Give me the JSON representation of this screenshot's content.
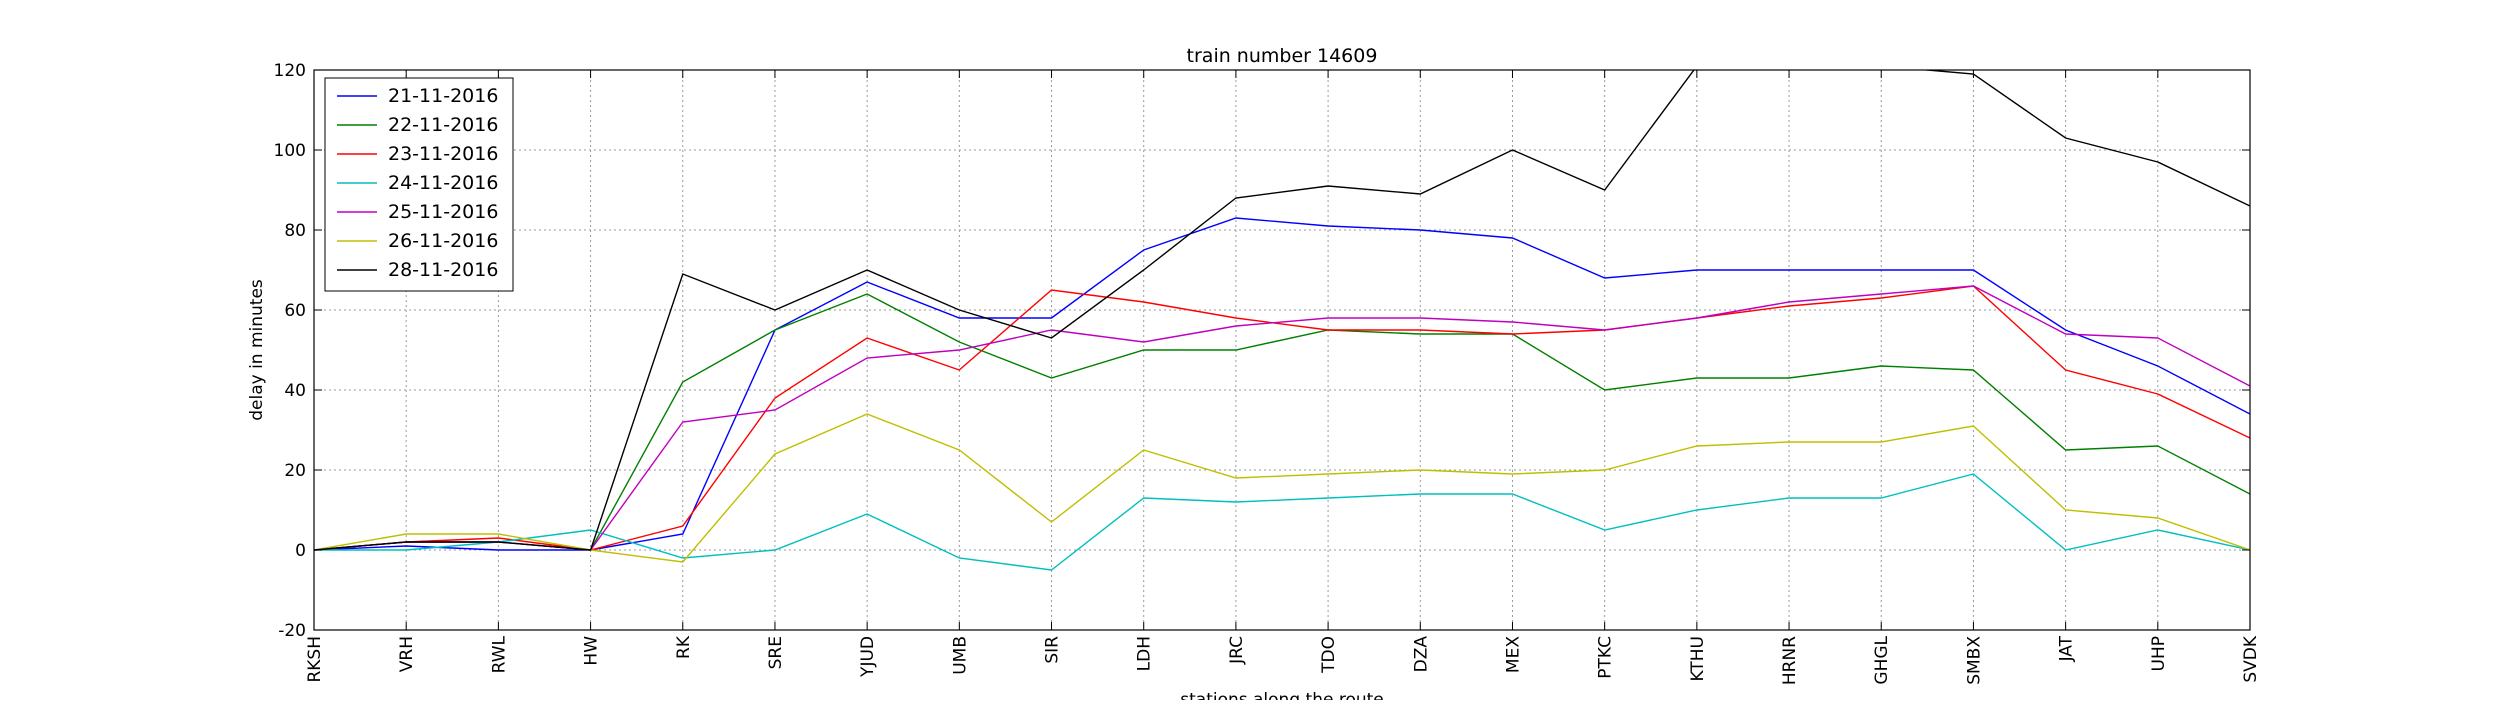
{
  "chart_data": {
    "type": "line",
    "title": "train number 14609",
    "xlabel": "stations along the route",
    "ylabel": "delay in minutes",
    "ylim": [
      -20,
      120
    ],
    "yticks": [
      -20,
      0,
      20,
      40,
      60,
      80,
      100,
      120
    ],
    "grid": true,
    "legend_position": "top-left",
    "categories": [
      "RKSH",
      "VRH",
      "RWL",
      "HW",
      "RK",
      "SRE",
      "YJUD",
      "UMB",
      "SIR",
      "LDH",
      "JRC",
      "TDO",
      "DZA",
      "MEX",
      "PTKC",
      "KTHU",
      "HRNR",
      "GHGL",
      "SMBX",
      "JAT",
      "UHP",
      "SVDK"
    ],
    "series": [
      {
        "name": "21-11-2016",
        "color": "#0000ff",
        "values": [
          0,
          1,
          0,
          0,
          4,
          55,
          67,
          58,
          58,
          75,
          83,
          81,
          80,
          78,
          68,
          70,
          70,
          70,
          70,
          55,
          46,
          34
        ]
      },
      {
        "name": "22-11-2016",
        "color": "#008000",
        "values": [
          0,
          2,
          2,
          0,
          42,
          55,
          64,
          52,
          43,
          50,
          50,
          55,
          54,
          54,
          40,
          43,
          43,
          46,
          45,
          25,
          26,
          14
        ]
      },
      {
        "name": "23-11-2016",
        "color": "#ff0000",
        "values": [
          0,
          2,
          3,
          0,
          6,
          38,
          53,
          45,
          65,
          62,
          58,
          55,
          55,
          54,
          55,
          58,
          61,
          63,
          66,
          45,
          39,
          28
        ]
      },
      {
        "name": "24-11-2016",
        "color": "#00bfbf",
        "values": [
          0,
          0,
          2,
          5,
          -2,
          0,
          9,
          -2,
          -5,
          13,
          12,
          13,
          14,
          14,
          5,
          10,
          13,
          13,
          19,
          0,
          5,
          0
        ]
      },
      {
        "name": "25-11-2016",
        "color": "#bf00bf",
        "values": [
          0,
          2,
          2,
          0,
          32,
          35,
          48,
          50,
          55,
          52,
          56,
          58,
          58,
          57,
          55,
          58,
          62,
          64,
          66,
          54,
          53,
          41
        ]
      },
      {
        "name": "26-11-2016",
        "color": "#bfbf00",
        "values": [
          0,
          4,
          4,
          0,
          -3,
          24,
          34,
          25,
          7,
          25,
          18,
          19,
          20,
          19,
          20,
          26,
          27,
          27,
          31,
          10,
          8,
          0
        ]
      },
      {
        "name": "28-11-2016",
        "color": "#000000",
        "values": [
          0,
          2,
          2,
          0,
          69,
          60,
          70,
          60,
          53,
          70,
          88,
          91,
          89,
          100,
          90,
          121,
          122,
          121,
          119,
          103,
          97,
          86
        ]
      }
    ]
  }
}
